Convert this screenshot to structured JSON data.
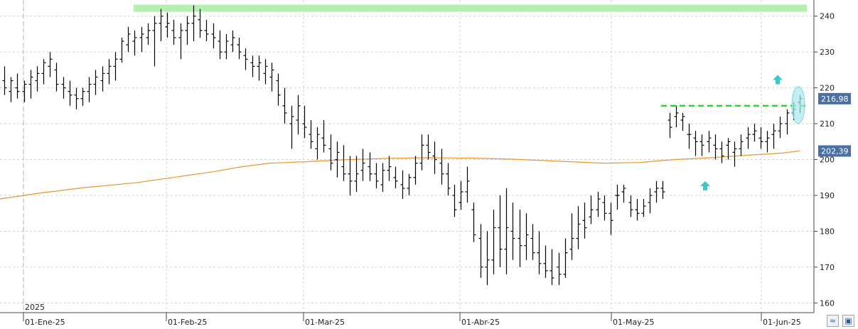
{
  "chart_data": {
    "type": "ohlc-bar",
    "year_label": "2025",
    "x_ticks": [
      "01-Ene-25",
      "01-Feb-25",
      "01-Mar-25",
      "01-Abr-25",
      "01-May-25",
      "01-Jun-25"
    ],
    "y_ticks": [
      160,
      170,
      180,
      190,
      200,
      210,
      220,
      230,
      240
    ],
    "ylim": [
      157.3,
      244.5
    ],
    "grid": true,
    "last_price_label": "216,98",
    "ma_label": "202,39",
    "colors": {
      "bars": "#000000",
      "moving_average": "#e8962e",
      "resistance_line": "#22dd22",
      "highlight_band": "#b6f0b0",
      "arrow": "#38c8c8",
      "circle": "#a8e8f0",
      "last_price_box": "#4a6fa0"
    },
    "bars": [
      [
        222,
        226,
        218,
        220
      ],
      [
        219,
        223,
        216,
        222
      ],
      [
        220,
        224,
        217,
        219
      ],
      [
        219,
        222,
        216,
        221
      ],
      [
        221,
        225,
        217,
        223
      ],
      [
        222,
        226,
        219,
        224
      ],
      [
        224,
        228,
        221,
        227
      ],
      [
        226,
        230,
        223,
        228
      ],
      [
        225,
        227,
        219,
        221
      ],
      [
        221,
        223,
        217,
        220
      ],
      [
        219,
        222,
        215,
        218
      ],
      [
        218,
        220,
        214,
        217
      ],
      [
        217,
        220,
        215,
        219
      ],
      [
        219,
        223,
        216,
        221
      ],
      [
        221,
        225,
        218,
        223
      ],
      [
        222,
        226,
        219,
        224
      ],
      [
        224,
        228,
        221,
        226
      ],
      [
        226,
        230,
        222,
        228
      ],
      [
        228,
        234,
        227,
        233
      ],
      [
        232,
        237,
        230,
        235
      ],
      [
        233,
        236,
        229,
        234
      ],
      [
        234,
        237,
        230,
        235
      ],
      [
        234,
        238,
        232,
        236
      ],
      [
        236,
        240,
        226,
        238
      ],
      [
        238,
        242,
        233,
        240
      ],
      [
        237,
        241,
        234,
        238
      ],
      [
        236,
        239,
        232,
        234
      ],
      [
        234,
        238,
        228,
        236
      ],
      [
        236,
        240,
        232,
        238
      ],
      [
        238,
        243,
        233,
        240
      ],
      [
        239,
        242,
        234,
        236
      ],
      [
        236,
        239,
        233,
        235
      ],
      [
        235,
        238,
        231,
        234
      ],
      [
        233,
        236,
        228,
        230
      ],
      [
        230,
        235,
        228,
        233
      ],
      [
        232,
        236,
        230,
        234
      ],
      [
        232,
        234,
        228,
        230
      ],
      [
        229,
        231,
        225,
        228
      ],
      [
        227,
        229,
        223,
        226
      ],
      [
        226,
        229,
        222,
        227
      ],
      [
        224,
        228,
        221,
        226
      ],
      [
        223,
        227,
        219,
        225
      ],
      [
        222,
        224,
        215,
        218
      ],
      [
        215,
        220,
        210,
        213
      ],
      [
        210,
        215,
        203,
        212
      ],
      [
        211,
        218,
        207,
        215
      ],
      [
        210,
        215,
        206,
        209
      ],
      [
        207,
        211,
        203,
        205
      ],
      [
        203,
        209,
        200,
        207
      ],
      [
        206,
        211,
        202,
        204
      ],
      [
        203,
        207,
        197,
        199
      ],
      [
        200,
        205,
        195,
        202
      ],
      [
        198,
        204,
        194,
        196
      ],
      [
        196,
        201,
        190,
        194
      ],
      [
        194,
        201,
        191,
        196
      ],
      [
        197,
        203,
        194,
        199
      ],
      [
        198,
        202,
        194,
        196
      ],
      [
        196,
        199,
        192,
        194
      ],
      [
        193,
        199,
        191,
        197
      ],
      [
        197,
        201,
        194,
        198
      ],
      [
        195,
        198,
        192,
        194
      ],
      [
        193,
        197,
        189,
        192
      ],
      [
        192,
        196,
        190,
        195
      ],
      [
        195,
        201,
        193,
        199
      ],
      [
        199,
        207,
        197,
        204
      ],
      [
        204,
        207,
        200,
        202
      ],
      [
        201,
        205,
        196,
        200
      ],
      [
        199,
        203,
        193,
        196
      ],
      [
        196,
        199,
        190,
        192
      ],
      [
        190,
        193,
        184,
        186
      ],
      [
        188,
        194,
        186,
        191
      ],
      [
        191,
        198,
        188,
        194
      ],
      [
        186,
        188,
        177,
        179
      ],
      [
        178,
        182,
        167,
        170
      ],
      [
        170,
        180,
        165,
        172
      ],
      [
        172,
        186,
        168,
        181
      ],
      [
        181,
        190,
        170,
        175
      ],
      [
        175,
        192,
        168,
        181
      ],
      [
        180,
        188,
        172,
        178
      ],
      [
        178,
        186,
        170,
        176
      ],
      [
        176,
        185,
        172,
        179
      ],
      [
        178,
        182,
        172,
        174
      ],
      [
        174,
        180,
        168,
        171
      ],
      [
        171,
        176,
        167,
        169
      ],
      [
        169,
        175,
        165,
        167
      ],
      [
        170,
        174,
        165,
        168
      ],
      [
        168,
        178,
        167,
        174
      ],
      [
        175,
        185,
        172,
        178
      ],
      [
        178,
        187,
        175,
        182
      ],
      [
        183,
        188,
        178,
        181
      ],
      [
        184,
        190,
        182,
        186
      ],
      [
        186,
        191,
        184,
        189
      ],
      [
        188,
        190,
        183,
        185
      ],
      [
        185,
        188,
        179,
        183
      ],
      [
        190,
        193,
        186,
        190
      ],
      [
        191,
        193,
        188,
        192
      ],
      [
        188,
        190,
        184,
        186
      ],
      [
        186,
        189,
        183,
        185
      ],
      [
        185,
        189,
        184,
        187
      ],
      [
        188,
        192,
        185,
        190
      ],
      [
        191,
        194,
        188,
        192
      ],
      [
        192,
        194,
        189,
        191
      ],
      [
        211,
        213,
        206,
        209
      ],
      [
        212,
        215,
        209,
        213
      ],
      [
        211,
        213,
        208,
        212
      ],
      [
        207,
        210,
        203,
        207
      ],
      [
        206,
        208,
        201,
        205
      ],
      [
        205,
        207,
        201,
        204
      ],
      [
        205,
        208,
        202,
        206
      ],
      [
        204,
        207,
        200,
        203
      ],
      [
        203,
        205,
        199,
        201
      ],
      [
        204,
        206,
        200,
        205
      ],
      [
        202,
        205,
        198,
        203
      ],
      [
        203,
        207,
        201,
        205
      ],
      [
        206,
        209,
        203,
        207
      ],
      [
        207,
        210,
        205,
        208
      ],
      [
        206,
        209,
        203,
        205
      ],
      [
        205,
        208,
        202,
        206
      ],
      [
        207,
        210,
        203,
        208
      ],
      [
        208,
        212,
        206,
        210
      ],
      [
        210,
        214,
        207,
        213
      ],
      [
        213,
        216,
        211,
        214
      ],
      [
        216,
        218,
        213,
        217
      ]
    ],
    "moving_average": [
      [
        0,
        189.0
      ],
      [
        50,
        190.5
      ],
      [
        120,
        192.2
      ],
      [
        190,
        193.5
      ],
      [
        250,
        195.2
      ],
      [
        300,
        196.6
      ],
      [
        340,
        198.0
      ],
      [
        380,
        199.0
      ],
      [
        430,
        199.4
      ],
      [
        480,
        199.9
      ],
      [
        540,
        200.3
      ],
      [
        600,
        200.5
      ],
      [
        660,
        200.4
      ],
      [
        720,
        200.1
      ],
      [
        790,
        199.5
      ],
      [
        850,
        199.0
      ],
      [
        900,
        199.2
      ],
      [
        950,
        200.0
      ],
      [
        1000,
        200.5
      ],
      [
        1050,
        201.2
      ],
      [
        1100,
        201.8
      ],
      [
        1125,
        202.4
      ]
    ],
    "resistance_line": {
      "x_start": 930,
      "x_end": 1133,
      "value": 215
    },
    "highlight_band": {
      "x_start": 188,
      "x_end": 1135,
      "low": 241.2,
      "high": 243.2
    },
    "arrows": [
      {
        "x": 992,
        "value": 192.6
      },
      {
        "x": 1094,
        "value": 222.2
      }
    ],
    "circle": {
      "x": 1123,
      "value": 215.2
    }
  },
  "toolbar": {
    "buttons": [
      "chart-type-icon",
      "save-icon"
    ]
  }
}
